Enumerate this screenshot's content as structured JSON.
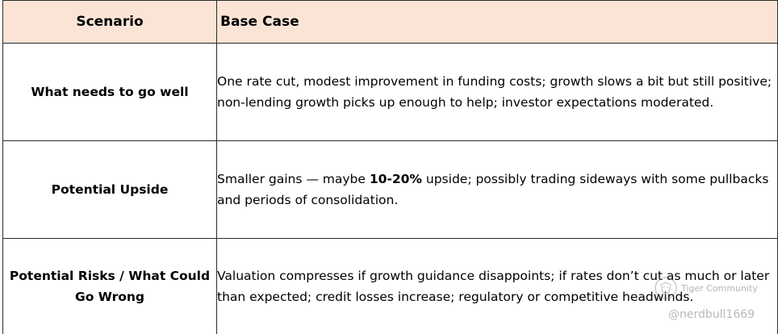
{
  "table": {
    "headers": {
      "scenario": "Scenario",
      "base_case": "Base Case"
    },
    "rows": [
      {
        "label": "What needs to go well",
        "text": "One rate cut, modest improvement in funding costs; growth slows a bit but still positive; non-lending growth picks up enough to help; investor expectations moderated."
      },
      {
        "label": "Potential Upside",
        "text_before": "Smaller gains — maybe ",
        "text_bold": "10-20%",
        "text_after": " upside; possibly trading sideways with some pullbacks and periods of consolidation."
      },
      {
        "label": "Potential Risks / What Could Go Wrong",
        "text": "Valuation compresses if growth guidance disappoints; if rates don’t cut as much or later than expected; credit losses increase; regulatory or competitive headwinds."
      }
    ]
  },
  "watermark": {
    "logo_icon": "tiger-logo-icon",
    "brand": "Tiger Community",
    "user": "@nerdbull1669"
  },
  "colors": {
    "header_background": "#fbe4d6",
    "border": "#2b2b2b"
  }
}
